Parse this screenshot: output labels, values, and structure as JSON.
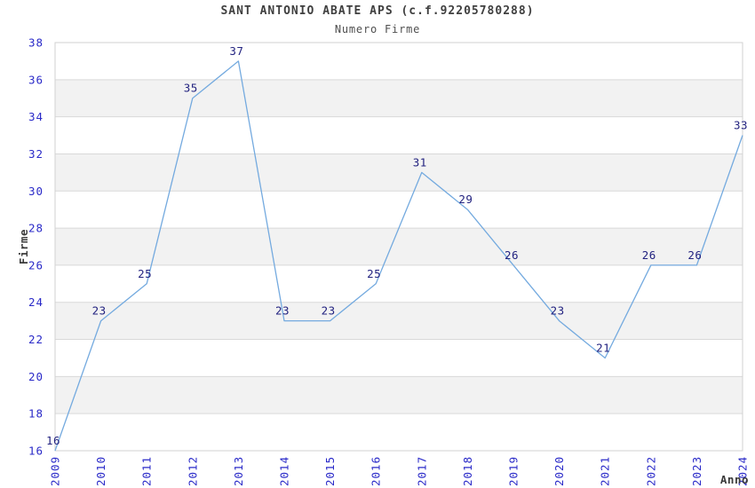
{
  "title": "SANT ANTONIO ABATE APS (c.f.92205780288)",
  "subtitle": "Numero Firme",
  "chart_data": {
    "type": "line",
    "categories": [
      "2009",
      "2010",
      "2011",
      "2012",
      "2013",
      "2014",
      "2015",
      "2016",
      "2017",
      "2018",
      "2019",
      "2020",
      "2021",
      "2022",
      "2023",
      "2024"
    ],
    "series": [
      {
        "name": "Numero Firme",
        "values": [
          16,
          23,
          25,
          35,
          37,
          23,
          23,
          25,
          31,
          29,
          26,
          23,
          21,
          26,
          26,
          33
        ]
      }
    ],
    "title": "SANT ANTONIO ABATE APS (c.f.92205780288)",
    "subtitle": "Numero Firme",
    "xlabel": "Anno",
    "ylabel": "Firme",
    "ylim": [
      16,
      38
    ],
    "ytick_step": 2,
    "yticks": [
      16,
      18,
      20,
      22,
      24,
      26,
      28,
      30,
      32,
      34,
      36,
      38
    ],
    "grid": "horizontal-bands",
    "legend_position": "none",
    "data_labels_shown": true,
    "colors": {
      "line": "#74aadf",
      "tick_label": "#2a2ac8",
      "data_label": "#232380",
      "axis_title": "#3a3a3a",
      "gridline": "#d9d9d9",
      "plot_border": "#d2d2d2",
      "band_even": "#ffffff",
      "band_odd": "#f2f2f2",
      "background": "#ffffff"
    }
  }
}
